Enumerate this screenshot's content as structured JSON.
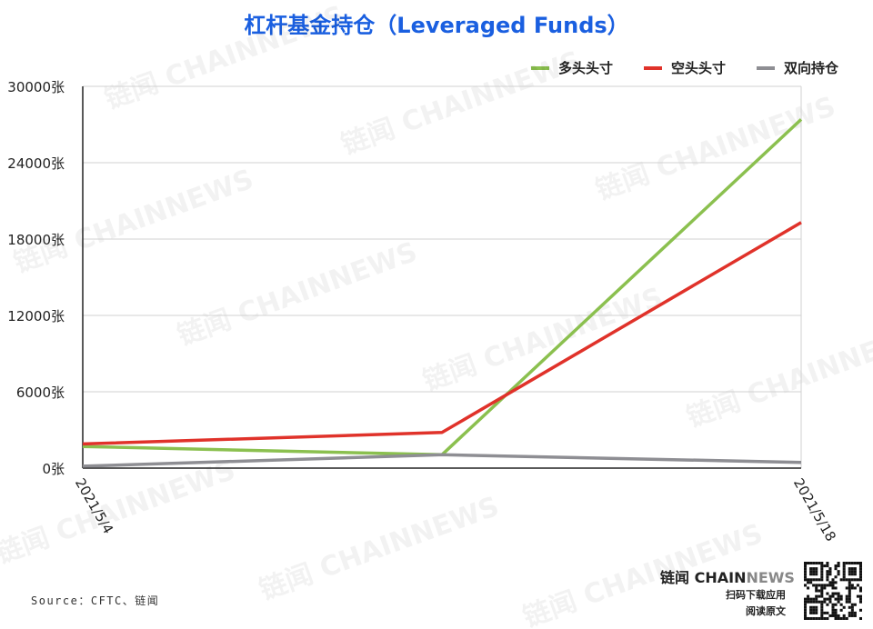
{
  "chart_data": {
    "type": "line",
    "title": "杠杆基金持仓（Leveraged Funds）",
    "x_tick_labels": [
      "2021/5/4",
      "",
      "2021/5/18"
    ],
    "y_ticks": [
      "0张",
      "6000张",
      "12000张",
      "18000张",
      "24000张",
      "30000张"
    ],
    "y_tick_values": [
      0,
      6000,
      12000,
      18000,
      24000,
      30000
    ],
    "ylim": [
      0,
      30000
    ],
    "grid": true,
    "legend_position": "top-right",
    "series": [
      {
        "name": "多头头寸",
        "color": "#8bc04f",
        "values": [
          1700,
          1050,
          27400
        ]
      },
      {
        "name": "空头头寸",
        "color": "#e0322a",
        "values": [
          1900,
          2800,
          19300
        ]
      },
      {
        "name": "双向持仓",
        "color": "#8e8e93",
        "values": [
          150,
          1050,
          450
        ]
      }
    ]
  },
  "footer": {
    "source": "Source：CFTC、链闻",
    "brand_cn": "链闻",
    "brand_chain": "CHAIN",
    "brand_news": "NEWS",
    "scan_line": "扫码下载应用",
    "read_line": "阅读原文"
  }
}
